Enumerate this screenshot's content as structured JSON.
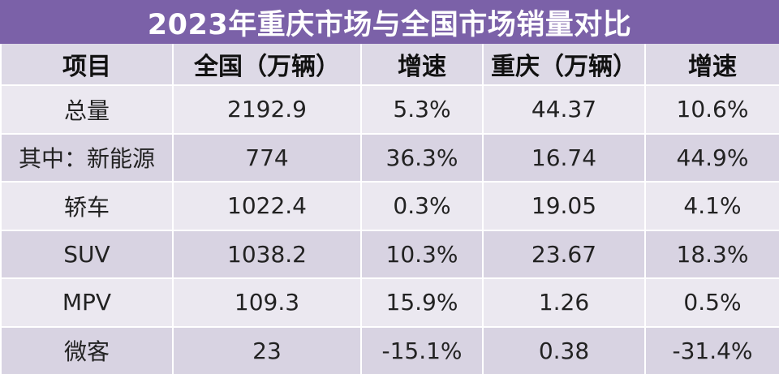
{
  "title": "2023年重庆市场与全国市场销量对比",
  "headers": [
    "项目",
    "全国（万辆）",
    "增速",
    "重庆（万辆）",
    "增速"
  ],
  "rows": [
    [
      "总量",
      "2192.9",
      "5.3%",
      "44.37",
      "10.6%"
    ],
    [
      "其中：新能源",
      "774",
      "36.3%",
      "16.74",
      "44.9%"
    ],
    [
      "轿车",
      "1022.4",
      "0.3%",
      "19.05",
      "4.1%"
    ],
    [
      "SUV",
      "1038.2",
      "10.3%",
      "23.67",
      "18.3%"
    ],
    [
      "MPV",
      "109.3",
      "15.9%",
      "1.26",
      "0.5%"
    ],
    [
      "微客",
      "23",
      "-15.1%",
      "0.38",
      "-31.4%"
    ]
  ],
  "colors": {
    "title_background": "#7b61a8",
    "title_text": "#ffffff",
    "header_background": "#ddd9e6",
    "row_light": "#ebe8f0",
    "row_dark": "#d8d3e2"
  }
}
